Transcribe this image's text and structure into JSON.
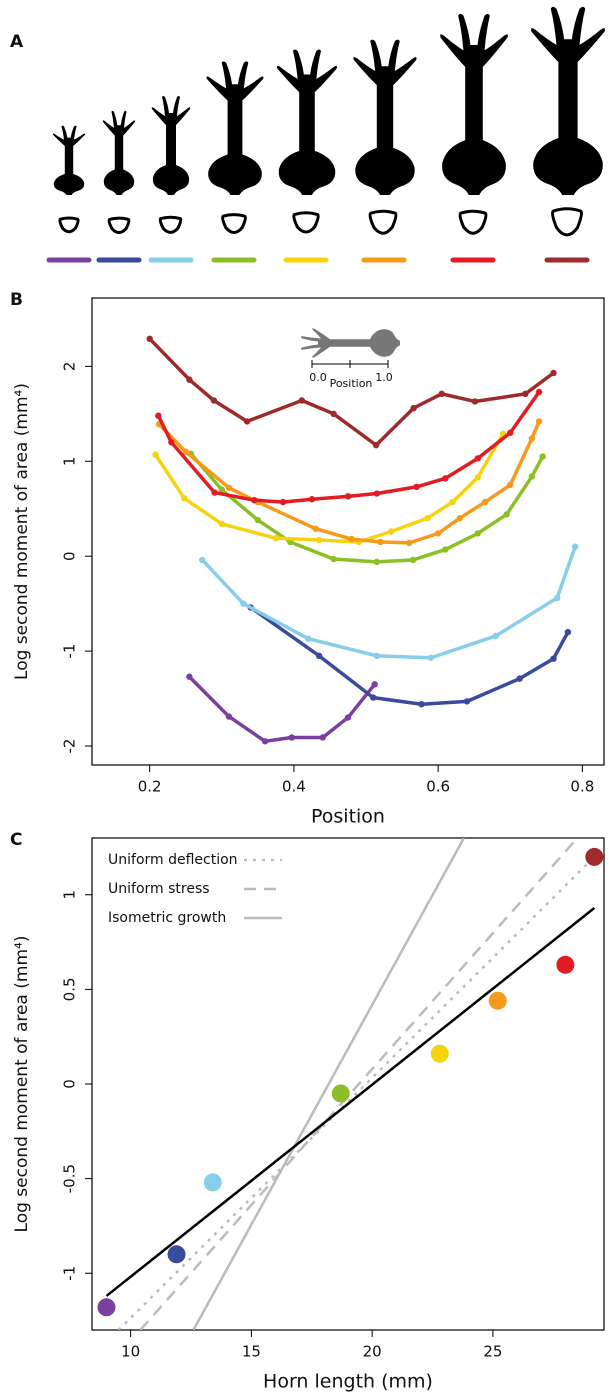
{
  "panel_a": {
    "label": "A"
  },
  "chart_data": [
    {
      "type": "line",
      "label": "B",
      "xlabel": "Position",
      "ylabel": "Log second moment of area (mm⁴)",
      "xlim": [
        0.12,
        0.83
      ],
      "ylim": [
        -2.2,
        2.72
      ],
      "xticks": [
        0.2,
        0.4,
        0.6,
        0.8
      ],
      "yticks": [
        -2,
        -1,
        0,
        1,
        2
      ],
      "inset": {
        "ticks": [
          "0.0",
          "1.0"
        ],
        "label": "Position"
      },
      "series": [
        {
          "color": "#7b3f9e",
          "x": [
            0.255,
            0.31,
            0.36,
            0.397,
            0.44,
            0.475,
            0.512
          ],
          "values": [
            -1.27,
            -1.69,
            -1.95,
            -1.91,
            -1.91,
            -1.7,
            -1.35
          ]
        },
        {
          "color": "#3a4a9c",
          "x": [
            0.34,
            0.435,
            0.51,
            0.577,
            0.64,
            0.713,
            0.76,
            0.78
          ],
          "values": [
            -0.54,
            -1.05,
            -1.49,
            -1.56,
            -1.53,
            -1.29,
            -1.08,
            -0.8
          ]
        },
        {
          "color": "#87ceeb",
          "x": [
            0.273,
            0.33,
            0.42,
            0.515,
            0.59,
            0.68,
            0.765,
            0.79
          ],
          "values": [
            -0.04,
            -0.5,
            -0.87,
            -1.05,
            -1.07,
            -0.84,
            -0.44,
            0.1
          ]
        },
        {
          "color": "#8cbf26",
          "x": [
            0.257,
            0.3,
            0.35,
            0.395,
            0.455,
            0.515,
            0.565,
            0.61,
            0.655,
            0.695,
            0.73,
            0.745
          ],
          "values": [
            1.08,
            0.7,
            0.38,
            0.15,
            -0.03,
            -0.06,
            -0.04,
            0.07,
            0.24,
            0.44,
            0.84,
            1.05
          ]
        },
        {
          "color": "#f5d40f",
          "x": [
            0.208,
            0.248,
            0.3,
            0.375,
            0.435,
            0.49,
            0.535,
            0.585,
            0.62,
            0.655,
            0.69
          ],
          "values": [
            1.07,
            0.61,
            0.34,
            0.19,
            0.17,
            0.15,
            0.26,
            0.4,
            0.57,
            0.83,
            1.29
          ]
        },
        {
          "color": "#f59a1b",
          "x": [
            0.213,
            0.25,
            0.31,
            0.35,
            0.43,
            0.48,
            0.52,
            0.56,
            0.6,
            0.63,
            0.665,
            0.7,
            0.73,
            0.74
          ],
          "values": [
            1.39,
            1.1,
            0.72,
            0.57,
            0.29,
            0.18,
            0.15,
            0.14,
            0.24,
            0.4,
            0.57,
            0.75,
            1.24,
            1.42
          ]
        },
        {
          "color": "#e31b23",
          "x": [
            0.212,
            0.23,
            0.29,
            0.345,
            0.385,
            0.425,
            0.475,
            0.515,
            0.57,
            0.61,
            0.655,
            0.7,
            0.74
          ],
          "values": [
            1.48,
            1.2,
            0.67,
            0.59,
            0.57,
            0.6,
            0.63,
            0.66,
            0.73,
            0.82,
            1.03,
            1.3,
            1.73
          ]
        },
        {
          "color": "#9e2a2b",
          "x": [
            0.2,
            0.255,
            0.289,
            0.335,
            0.411,
            0.455,
            0.514,
            0.566,
            0.605,
            0.651,
            0.721,
            0.76
          ],
          "values": [
            2.29,
            1.86,
            1.64,
            1.42,
            1.64,
            1.5,
            1.17,
            1.56,
            1.71,
            1.63,
            1.71,
            1.93
          ]
        }
      ]
    },
    {
      "type": "scatter",
      "label": "C",
      "xlabel": "Horn length (mm)",
      "ylabel": "Log second moment of area (mm⁴)",
      "xlim": [
        8.4,
        29.6
      ],
      "ylim": [
        -1.3,
        1.3
      ],
      "xticks": [
        10,
        15,
        20,
        25
      ],
      "yticks": [
        -1,
        -0.5,
        0,
        0.5,
        1
      ],
      "points": {
        "x": [
          9.0,
          11.9,
          13.4,
          18.7,
          22.8,
          25.2,
          28.0,
          29.2
        ],
        "values": [
          -1.18,
          -0.9,
          -0.52,
          -0.05,
          0.16,
          0.44,
          0.63,
          1.2
        ],
        "colors": [
          "#7b3f9e",
          "#3a4a9c",
          "#87ceeb",
          "#8cbf26",
          "#f5d40f",
          "#f59a1b",
          "#e31b23",
          "#9e2a2b"
        ]
      },
      "lines": [
        {
          "name": "Uniform deflection",
          "color": "#bbbbbb",
          "dash": "dotted",
          "x": [
            9.5,
            29.2
          ],
          "values": [
            -1.3,
            1.2
          ]
        },
        {
          "name": "Uniform stress",
          "color": "#bbbbbb",
          "dash": "dashed",
          "x": [
            10.4,
            28.5
          ],
          "values": [
            -1.3,
            1.3
          ]
        },
        {
          "name": "Isometric growth",
          "color": "#bbbbbb",
          "dash": "solid",
          "x": [
            12.6,
            23.8
          ],
          "values": [
            -1.3,
            1.3
          ]
        },
        {
          "color": "#000000",
          "dash": "solid",
          "x": [
            9.0,
            29.2
          ],
          "values": [
            -1.12,
            0.93
          ]
        }
      ]
    }
  ]
}
